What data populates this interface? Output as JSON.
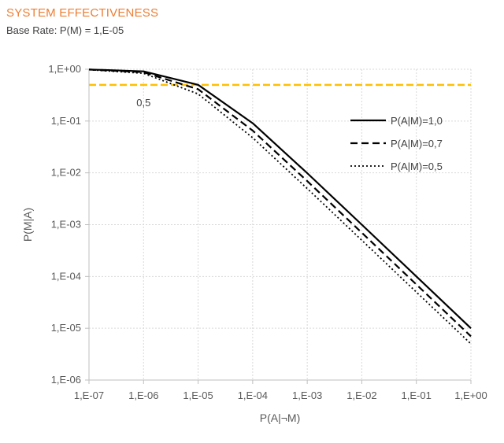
{
  "chart_data": {
    "type": "line",
    "title": "SYSTEM EFFECTIVENESS",
    "subtitle": "Base Rate: P(M) = 1,E-05",
    "xlabel": "P(A|¬M)",
    "ylabel": "P(M|A)",
    "xscale": "log",
    "yscale": "log",
    "xlim": [
      1e-07,
      1
    ],
    "ylim": [
      1e-06,
      1
    ],
    "x_tick_values": [
      1e-07,
      1e-06,
      1e-05,
      0.0001,
      0.001,
      0.01,
      0.1,
      1
    ],
    "x_tick_labels": [
      "1,E-07",
      "1,E-06",
      "1,E-05",
      "1,E-04",
      "1,E-03",
      "1,E-02",
      "1,E-01",
      "1,E+00"
    ],
    "y_tick_values": [
      1,
      0.1,
      0.01,
      0.001,
      0.0001,
      1e-05,
      1e-06
    ],
    "y_tick_labels": [
      "1,E+00",
      "1,E-01",
      "1,E-02",
      "1,E-03",
      "1,E-04",
      "1,E-05",
      "1,E-06"
    ],
    "grid": true,
    "legend_position": "upper-right",
    "x": [
      1e-07,
      1e-06,
      1e-05,
      0.0001,
      0.001,
      0.01,
      0.1,
      1
    ],
    "series": [
      {
        "name": "P(A|M)=1,0",
        "style": "solid",
        "values": [
          0.99,
          0.909,
          0.5,
          0.0909,
          0.0099,
          0.001,
          0.0001,
          1e-05
        ]
      },
      {
        "name": "P(A|M)=0,7",
        "style": "dashed",
        "values": [
          0.986,
          0.875,
          0.412,
          0.0654,
          0.00695,
          0.0007,
          7e-05,
          7e-06
        ]
      },
      {
        "name": "P(A|M)=0,5",
        "style": "dotted",
        "values": [
          0.98,
          0.833,
          0.333,
          0.0476,
          0.00498,
          0.0005,
          5e-05,
          5e-06
        ]
      }
    ],
    "reference_line": {
      "y": 0.5,
      "label": "0,5",
      "color": "#FFC000"
    },
    "colors": {
      "title": "#ED7D31",
      "series": "#000000",
      "grid": "#D9D9D9",
      "axis": "#BFBFBF"
    }
  }
}
